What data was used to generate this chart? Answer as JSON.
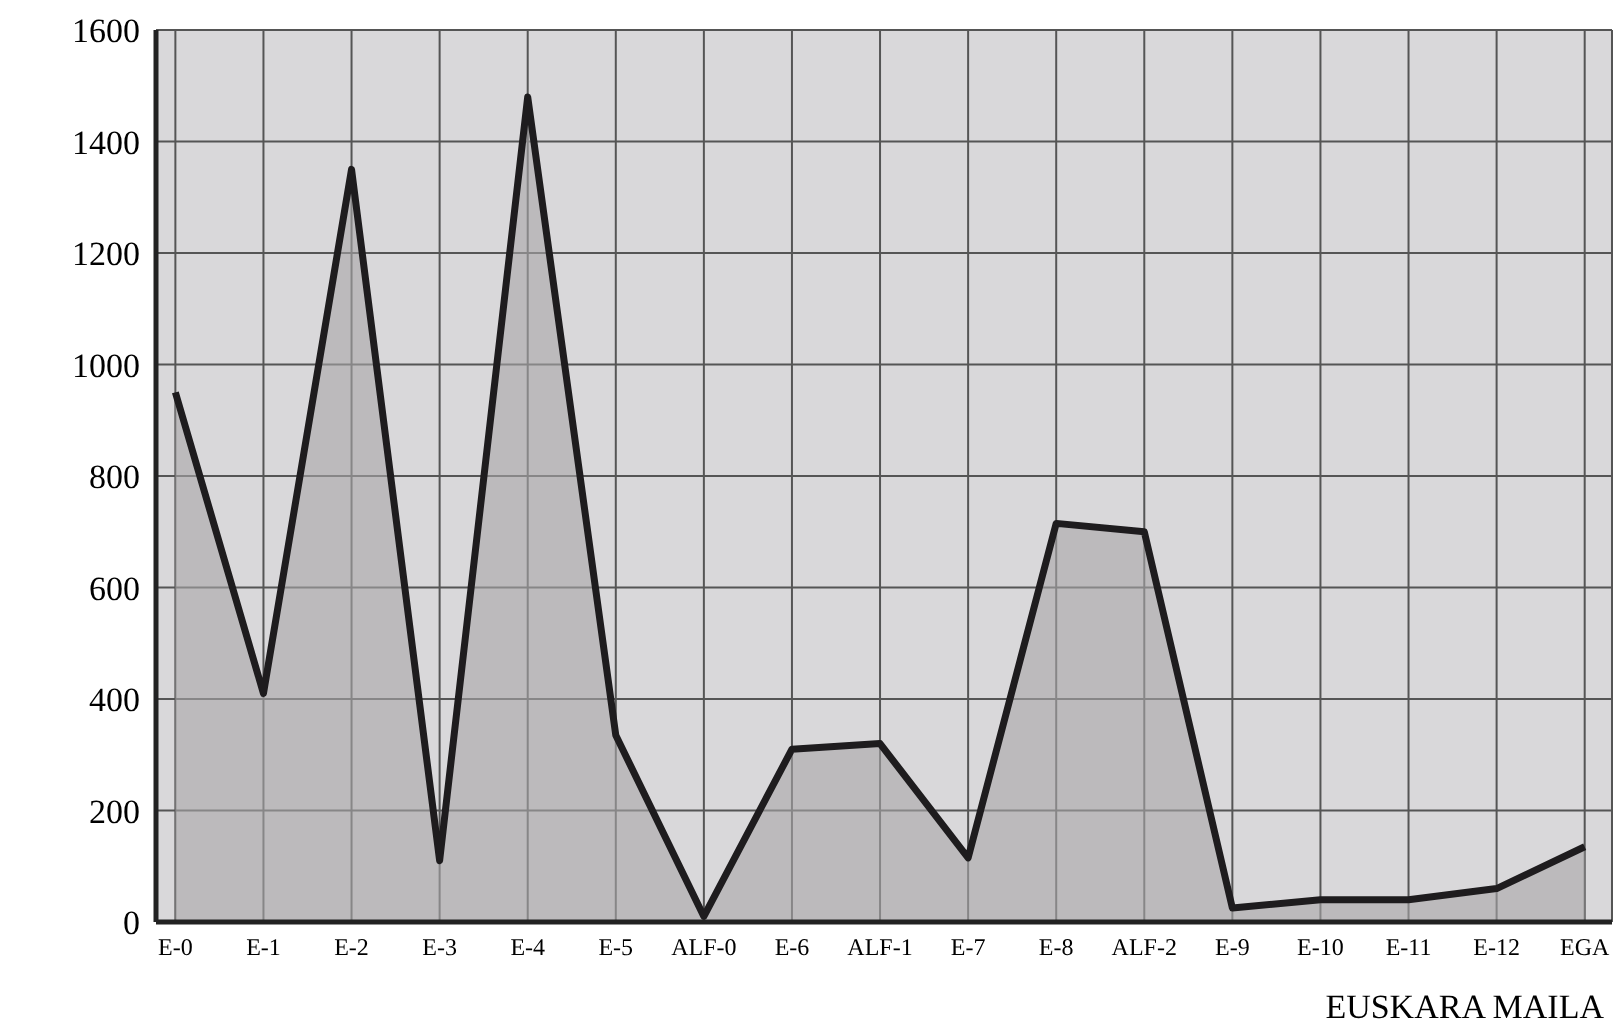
{
  "chart_data": {
    "type": "area",
    "xlabel": "EUSKARA MAILA",
    "categories": [
      "E-0",
      "E-1",
      "E-2",
      "E-3",
      "E-4",
      "E-5",
      "ALF-0",
      "E-6",
      "ALF-1",
      "E-7",
      "E-8",
      "ALF-2",
      "E-9",
      "E-10",
      "E-11",
      "E-12",
      "EGA"
    ],
    "series": [
      {
        "color": "#1e1c1e",
        "values": [
          950,
          410,
          1350,
          110,
          1480,
          335,
          10,
          310,
          320,
          115,
          715,
          700,
          25,
          40,
          40,
          60,
          135
        ]
      }
    ],
    "ylim": [
      0,
      1600
    ],
    "yticks": [
      0,
      200,
      400,
      600,
      800,
      1000,
      1200,
      1400,
      1600
    ],
    "grid": true,
    "marker": "none",
    "line_style": "solid"
  }
}
